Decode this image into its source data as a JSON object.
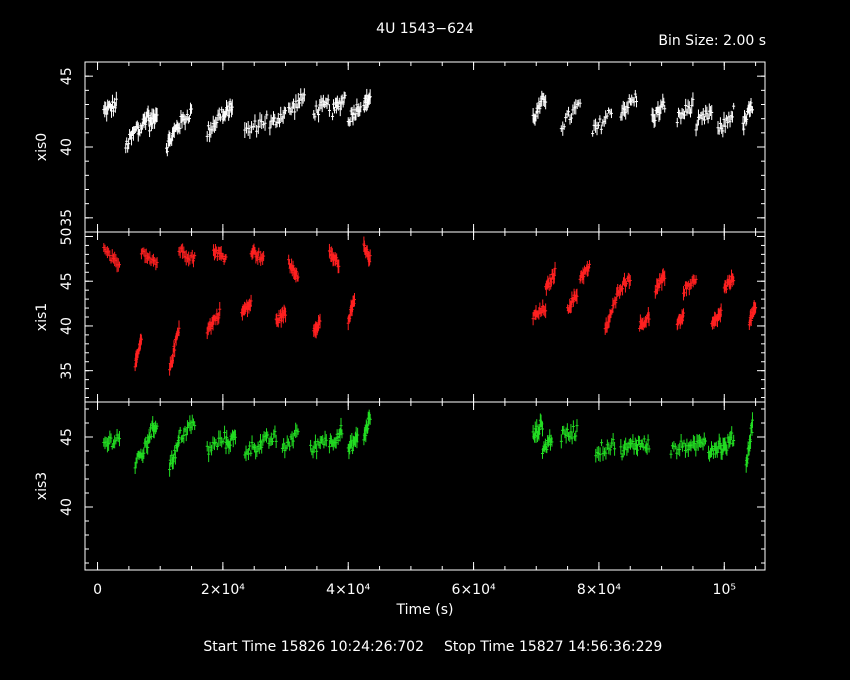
{
  "title": "4U 1543−624",
  "bin_size": "Bin Size: 2.00 s",
  "xlabel": "Time (s)",
  "start_time": "Start Time 15826 10:24:26:702",
  "stop_time": "Stop Time 15827 14:56:36:229",
  "chart_data": {
    "type": "scatter",
    "x_range": [
      -2000,
      106500
    ],
    "x_ticks": [
      {
        "value": 0,
        "label": "0"
      },
      {
        "value": 20000,
        "label": "2×10⁴"
      },
      {
        "value": 40000,
        "label": "4×10⁴"
      },
      {
        "value": 60000,
        "label": "6×10⁴"
      },
      {
        "value": 80000,
        "label": "8×10⁴"
      },
      {
        "value": 100000,
        "label": "10⁵"
      }
    ],
    "panels": [
      {
        "ylabel": "xis0",
        "color": "#ffffff",
        "ylim": [
          34,
          46
        ],
        "y_ticks": [
          {
            "value": 45,
            "label": "45"
          },
          {
            "value": 40,
            "label": "40"
          },
          {
            "value": 35,
            "label": "35"
          }
        ],
        "segments": [
          [
            1000,
            3000,
            42.5,
            43
          ],
          [
            4500,
            6500,
            40,
            41.5
          ],
          [
            6500,
            8200,
            41,
            42.5
          ],
          [
            8200,
            9500,
            41.5,
            42.5
          ],
          [
            11000,
            12800,
            40,
            41.5
          ],
          [
            12800,
            15000,
            41.5,
            42.5
          ],
          [
            17500,
            20000,
            41,
            42.5
          ],
          [
            20000,
            21500,
            42,
            43
          ],
          [
            23500,
            27000,
            41,
            42
          ],
          [
            27500,
            30000,
            41.5,
            42.5
          ],
          [
            30500,
            33000,
            42.5,
            43.5
          ],
          [
            34500,
            37000,
            42.5,
            43
          ],
          [
            37500,
            39500,
            42.5,
            43.5
          ],
          [
            40000,
            42000,
            42,
            43
          ],
          [
            42500,
            43500,
            43,
            43.5
          ],
          [
            69500,
            71500,
            42,
            43.5
          ],
          [
            74000,
            77000,
            41.5,
            43
          ],
          [
            79000,
            82000,
            41,
            42.5
          ],
          [
            83500,
            86000,
            42.5,
            43.5
          ],
          [
            88500,
            90500,
            42,
            43
          ],
          [
            92500,
            95000,
            42,
            43
          ],
          [
            95500,
            98000,
            41.5,
            42.5
          ],
          [
            99000,
            101500,
            41,
            42.5
          ],
          [
            103000,
            104500,
            41.5,
            43
          ]
        ]
      },
      {
        "ylabel": "xis1",
        "color": "#ff2020",
        "ylim": [
          31.5,
          50.5
        ],
        "y_ticks": [
          {
            "value": 50,
            "label": "50"
          },
          {
            "value": 45,
            "label": "45"
          },
          {
            "value": 40,
            "label": "40"
          },
          {
            "value": 35,
            "label": "35"
          }
        ],
        "segments": [
          [
            1000,
            3500,
            48.5,
            46.5
          ],
          [
            7000,
            9500,
            48.5,
            47
          ],
          [
            13000,
            15500,
            48.5,
            47.5
          ],
          [
            18500,
            20500,
            48.5,
            47.5
          ],
          [
            24500,
            26500,
            48.5,
            47.5
          ],
          [
            30500,
            32000,
            47,
            45.5
          ],
          [
            37000,
            38500,
            48,
            47
          ],
          [
            42500,
            43500,
            49,
            47.5
          ],
          [
            6000,
            7000,
            35.5,
            38.5
          ],
          [
            11500,
            13000,
            35,
            40
          ],
          [
            17500,
            19500,
            39.5,
            41.5
          ],
          [
            23000,
            24500,
            41.5,
            42.5
          ],
          [
            28500,
            30000,
            40.5,
            41.5
          ],
          [
            34500,
            35500,
            39.5,
            40.5
          ],
          [
            40000,
            41000,
            40.5,
            43
          ],
          [
            69500,
            71500,
            41,
            42
          ],
          [
            71500,
            73000,
            44,
            46
          ],
          [
            75000,
            76500,
            42,
            43.5
          ],
          [
            77000,
            78500,
            45.5,
            46.5
          ],
          [
            81000,
            83000,
            39.5,
            43.5
          ],
          [
            83000,
            85000,
            44,
            45.5
          ],
          [
            86500,
            88000,
            40,
            41
          ],
          [
            89000,
            90500,
            44,
            45.5
          ],
          [
            92500,
            93500,
            40.5,
            41
          ],
          [
            93500,
            95500,
            44,
            45
          ],
          [
            98000,
            99500,
            40,
            41.5
          ],
          [
            100000,
            101500,
            44,
            45.5
          ],
          [
            104000,
            105000,
            40.5,
            42
          ]
        ]
      },
      {
        "ylabel": "xis3",
        "color": "#22dd22",
        "ylim": [
          35.5,
          47.5
        ],
        "y_ticks": [
          {
            "value": 45,
            "label": "45"
          },
          {
            "value": 40,
            "label": "40"
          }
        ],
        "segments": [
          [
            1000,
            3500,
            44.5,
            45
          ],
          [
            6000,
            8000,
            43,
            44.5
          ],
          [
            8000,
            9500,
            45,
            46
          ],
          [
            11500,
            13000,
            43,
            44.5
          ],
          [
            13000,
            15500,
            45,
            46
          ],
          [
            17500,
            20500,
            44,
            45
          ],
          [
            20500,
            22000,
            44.5,
            45
          ],
          [
            23500,
            26000,
            44,
            44.5
          ],
          [
            26000,
            28500,
            44.5,
            45
          ],
          [
            29500,
            32000,
            44,
            45.5
          ],
          [
            34000,
            36500,
            44,
            45
          ],
          [
            37000,
            39000,
            44.5,
            45.5
          ],
          [
            40000,
            41500,
            44,
            45
          ],
          [
            42500,
            43500,
            45,
            46.5
          ],
          [
            69500,
            71000,
            45,
            46
          ],
          [
            71000,
            72500,
            44,
            45
          ],
          [
            74000,
            76500,
            45,
            45.5
          ],
          [
            79500,
            82500,
            44,
            44.5
          ],
          [
            83500,
            86000,
            44,
            44.5
          ],
          [
            86000,
            88000,
            44.5,
            44.5
          ],
          [
            91500,
            94500,
            44,
            44.5
          ],
          [
            94500,
            97000,
            44,
            45
          ],
          [
            97500,
            99500,
            44,
            44.5
          ],
          [
            99500,
            101500,
            44,
            45
          ],
          [
            103500,
            104500,
            43,
            46
          ]
        ]
      }
    ]
  }
}
